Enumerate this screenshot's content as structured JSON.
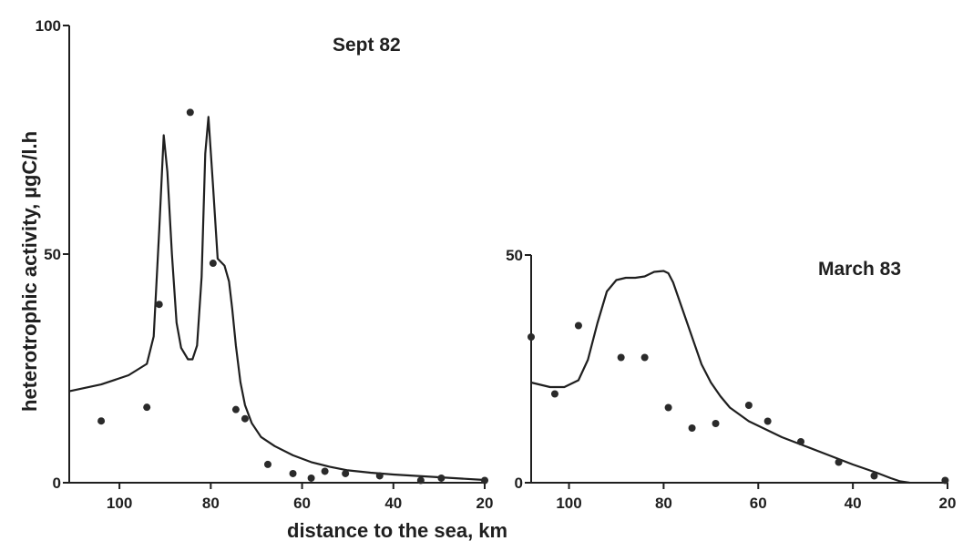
{
  "chart_data": [
    {
      "type": "line",
      "title": "Sept 82",
      "xlabel": "distance to the sea, km",
      "ylabel": "heterotrophic activity, µgC/l.h",
      "xlim": [
        111,
        20
      ],
      "ylim": [
        0,
        100
      ],
      "xticks": [
        100,
        80,
        60,
        40,
        20
      ],
      "yticks": [
        0,
        50,
        100
      ],
      "curve": {
        "x": [
          111,
          104,
          98,
          94,
          92.5,
          91.3,
          90.3,
          89.5,
          88.5,
          87.5,
          86.5,
          85,
          84,
          83,
          82,
          81.2,
          80.5,
          79.5,
          78.5,
          77,
          76,
          75.3,
          74.5,
          73.5,
          72.5,
          71,
          69,
          66,
          62,
          58,
          54,
          50,
          45,
          40,
          35,
          30,
          25,
          20
        ],
        "y": [
          20,
          21.5,
          23.5,
          26,
          32,
          55,
          76,
          68,
          50,
          35,
          29.5,
          27,
          27,
          30,
          45,
          72,
          80,
          65,
          49,
          47.5,
          44,
          38,
          30,
          22,
          17,
          13,
          10,
          8,
          6,
          4.5,
          3.5,
          2.7,
          2.2,
          1.8,
          1.5,
          1.2,
          0.9,
          0.6
        ]
      },
      "points": {
        "x": [
          104,
          94,
          91.3,
          84.5,
          79.5,
          74.5,
          72.5,
          67.5,
          62,
          58,
          55,
          50.5,
          43,
          34,
          29.5,
          20
        ],
        "y": [
          13.5,
          16.5,
          39,
          81,
          48,
          16,
          14,
          4,
          2,
          1,
          2.5,
          2,
          1.5,
          0.5,
          1,
          0.5
        ]
      }
    },
    {
      "type": "line",
      "title": "March 83",
      "xlim": [
        108,
        20
      ],
      "ylim": [
        0,
        50
      ],
      "xticks": [
        100,
        80,
        60,
        40,
        20
      ],
      "yticks": [
        0,
        50
      ],
      "curve": {
        "x": [
          108,
          104,
          101,
          98,
          96,
          94,
          92,
          90,
          88,
          86,
          84,
          82,
          80,
          79,
          78,
          77,
          76,
          74,
          72,
          70,
          68,
          66,
          64,
          62,
          60,
          55,
          50,
          45,
          40,
          35,
          32,
          30,
          28
        ],
        "y": [
          22,
          21,
          21,
          22.5,
          27,
          35,
          42,
          44.5,
          45,
          45,
          45.3,
          46.3,
          46.5,
          46,
          44,
          41,
          38,
          32,
          26,
          22,
          19,
          16.5,
          15,
          13.5,
          12.5,
          10,
          8,
          6,
          4,
          2.2,
          1,
          0.3,
          0
        ]
      },
      "points": {
        "x": [
          108,
          103,
          98,
          89,
          84,
          79,
          74,
          69,
          62,
          58,
          51,
          43,
          35.5,
          20.5
        ],
        "y": [
          32,
          19.5,
          34.5,
          27.5,
          27.5,
          16.5,
          12,
          13,
          17,
          13.5,
          9,
          4.5,
          1.5,
          0.5
        ]
      }
    }
  ]
}
